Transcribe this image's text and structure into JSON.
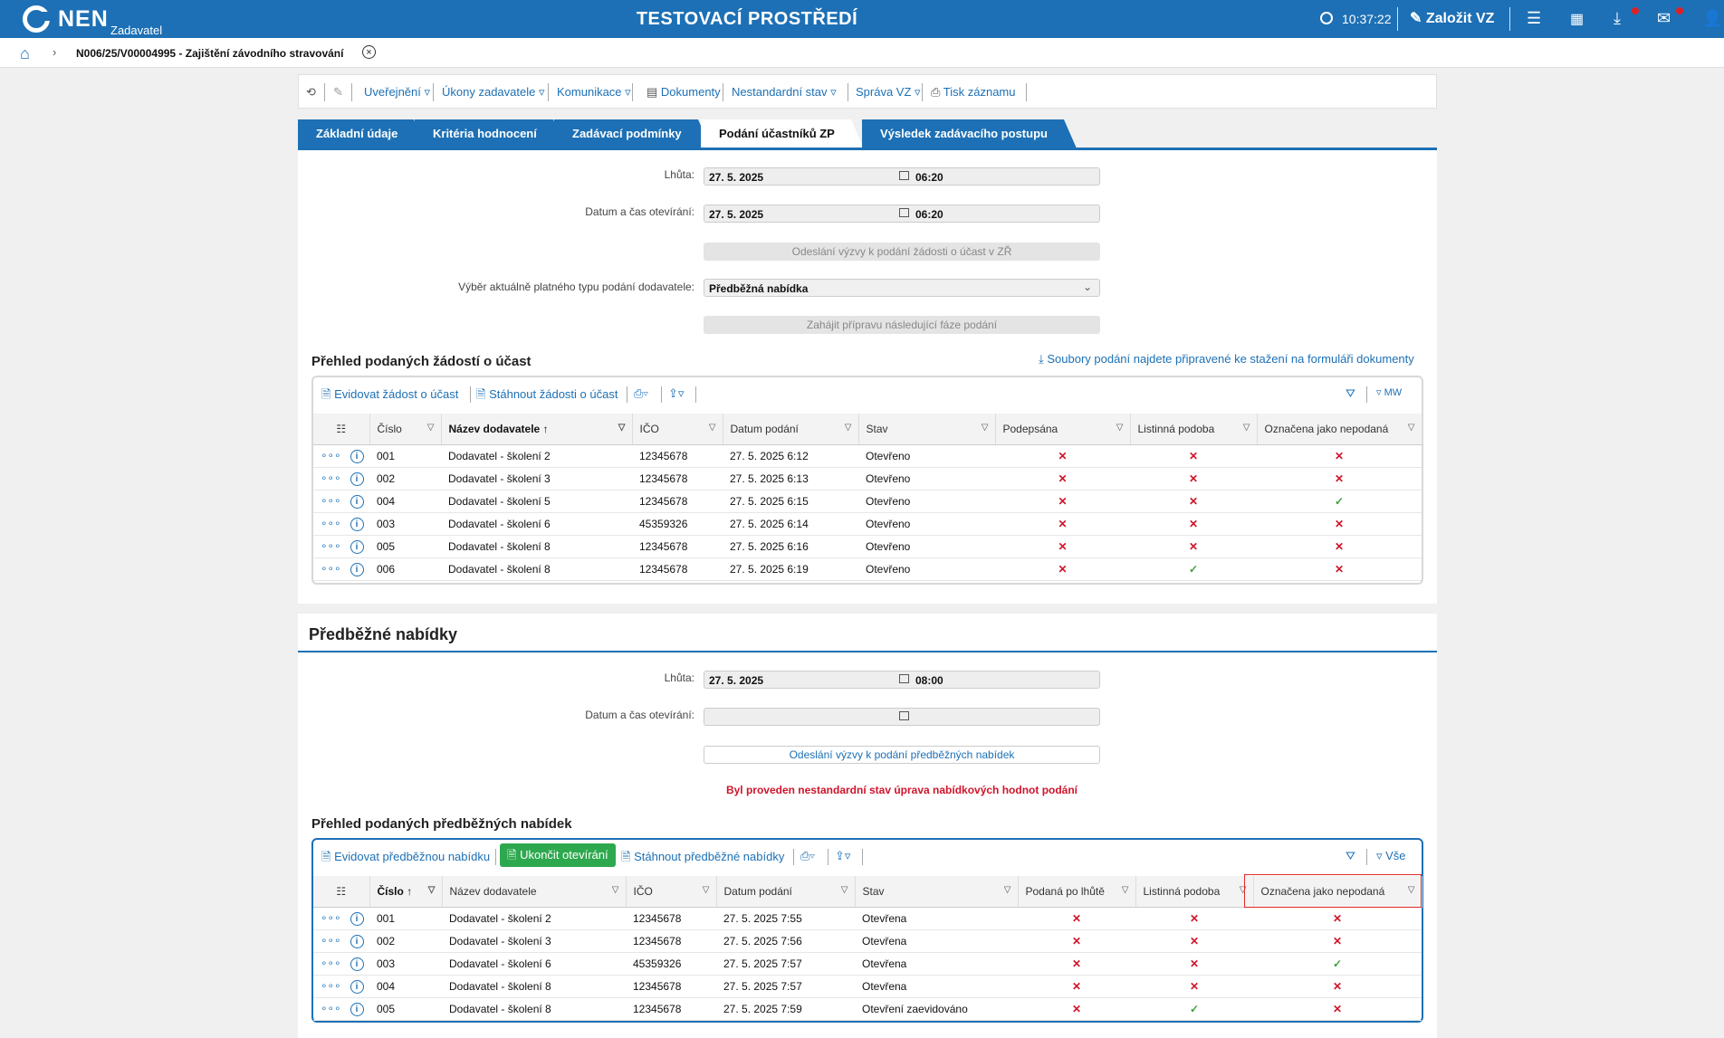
{
  "topbar": {
    "logo": "NEN",
    "logo_sub": "Zadavatel",
    "environment": "TESTOVACÍ PROSTŘEDÍ",
    "time": "10:37:22",
    "new_button": "Založit VZ",
    "icons": [
      "menu-icon",
      "calendar-icon",
      "download-icon",
      "mail-icon",
      "user-icon"
    ]
  },
  "breadcrumb": {
    "title": "N006/25/V00004995 - Zajištění závodního stravování"
  },
  "toolbar": {
    "items": [
      "Uveřejnění ▿",
      "Úkony zadavatele ▿",
      "Komunikace ▿",
      "Dokumenty",
      "Nestandardní stav ▿",
      "Správa VZ ▿",
      "Tisk záznamu"
    ]
  },
  "tabs": [
    "Základní údaje",
    "Kritéria hodnocení",
    "Zadávací podmínky",
    "Podání účastníků ZP",
    "Výsledek zadávacího postupu"
  ],
  "section1": {
    "lhuta_label": "Lhůta:",
    "lhuta_date": "27. 5. 2025",
    "lhuta_time": "06:20",
    "otevirani_label": "Datum a čas otevírání:",
    "otevirani_date": "27. 5. 2025",
    "otevirani_time": "06:20",
    "send_invite_btn": "Odeslání výzvy k podání žádosti o účast v ZŘ",
    "type_label": "Výběr aktuálně platného typu podání dodavatele:",
    "type_value": "Předběžná nabídka",
    "next_phase_btn": "Zahájit přípravu následující fáze podání",
    "grid_title": "Přehled podaných žádostí o účast",
    "files_link": "Soubory podání najdete připravené ke stažení na formuláři dokumenty",
    "tool_register": "Evidovat žádost o účast",
    "tool_download": "Stáhnout žádosti o účast",
    "tool_mw": "MW",
    "columns": [
      "Číslo",
      "Název dodavatele",
      "IČO",
      "Datum podání",
      "Stav",
      "Podepsána",
      "Listinná podoba",
      "Označena jako nepodaná"
    ],
    "rows": [
      {
        "cislo": "001",
        "nazev": "Dodavatel - školení 2",
        "ico": "12345678",
        "datum": "27. 5. 2025 6:12",
        "stav": "Otevřeno",
        "podepsana": "✕",
        "listinna": "✕",
        "nepodana": "✕"
      },
      {
        "cislo": "002",
        "nazev": "Dodavatel - školení 3",
        "ico": "12345678",
        "datum": "27. 5. 2025 6:13",
        "stav": "Otevřeno",
        "podepsana": "✕",
        "listinna": "✕",
        "nepodana": "✕"
      },
      {
        "cislo": "004",
        "nazev": "Dodavatel - školení 5",
        "ico": "12345678",
        "datum": "27. 5. 2025 6:15",
        "stav": "Otevřeno",
        "podepsana": "✕",
        "listinna": "✕",
        "nepodana": "✓"
      },
      {
        "cislo": "003",
        "nazev": "Dodavatel - školení 6",
        "ico": "45359326",
        "datum": "27. 5. 2025 6:14",
        "stav": "Otevřeno",
        "podepsana": "✕",
        "listinna": "✕",
        "nepodana": "✕"
      },
      {
        "cislo": "005",
        "nazev": "Dodavatel - školení 8",
        "ico": "12345678",
        "datum": "27. 5. 2025 6:16",
        "stav": "Otevřeno",
        "podepsana": "✕",
        "listinna": "✕",
        "nepodana": "✕"
      },
      {
        "cislo": "006",
        "nazev": "Dodavatel - školení 8",
        "ico": "12345678",
        "datum": "27. 5. 2025 6:19",
        "stav": "Otevřeno",
        "podepsana": "✕",
        "listinna": "✓",
        "nepodana": "✕"
      }
    ]
  },
  "section2": {
    "heading": "Předběžné nabídky",
    "lhuta_label": "Lhůta:",
    "lhuta_date": "27. 5. 2025",
    "lhuta_time": "08:00",
    "otevirani_label": "Datum a čas otevírání:",
    "send_invite_btn": "Odeslání výzvy k podání předběžných nabídek",
    "warning": "Byl proveden nestandardní stav úprava nabídkových hodnot podání",
    "grid_title": "Přehled podaných předběžných nabídek",
    "tool_register": "Evidovat předběžnou nabídku",
    "tool_close": "Ukončit otevírání",
    "tool_download": "Stáhnout předběžné nabídky",
    "tool_all": "Vše",
    "columns": [
      "Číslo",
      "Název dodavatele",
      "IČO",
      "Datum podání",
      "Stav",
      "Podaná po lhůtě",
      "Listinná podoba",
      "Označena jako nepodaná"
    ],
    "rows": [
      {
        "cislo": "001",
        "nazev": "Dodavatel - školení 2",
        "ico": "12345678",
        "datum": "27. 5. 2025 7:55",
        "stav": "Otevřena",
        "polhute": "✕",
        "listinna": "✕",
        "nepodana": "✕"
      },
      {
        "cislo": "002",
        "nazev": "Dodavatel - školení 3",
        "ico": "12345678",
        "datum": "27. 5. 2025 7:56",
        "stav": "Otevřena",
        "polhute": "✕",
        "listinna": "✕",
        "nepodana": "✕"
      },
      {
        "cislo": "003",
        "nazev": "Dodavatel - školení 6",
        "ico": "45359326",
        "datum": "27. 5. 2025 7:57",
        "stav": "Otevřena",
        "polhute": "✕",
        "listinna": "✕",
        "nepodana": "✓"
      },
      {
        "cislo": "004",
        "nazev": "Dodavatel - školení 8",
        "ico": "12345678",
        "datum": "27. 5. 2025 7:57",
        "stav": "Otevřena",
        "polhute": "✕",
        "listinna": "✕",
        "nepodana": "✕"
      },
      {
        "cislo": "005",
        "nazev": "Dodavatel - školení 8",
        "ico": "12345678",
        "datum": "27. 5. 2025 7:59",
        "stav": "Otevření zaevidováno",
        "polhute": "✕",
        "listinna": "✓",
        "nepodana": "✕"
      }
    ]
  }
}
